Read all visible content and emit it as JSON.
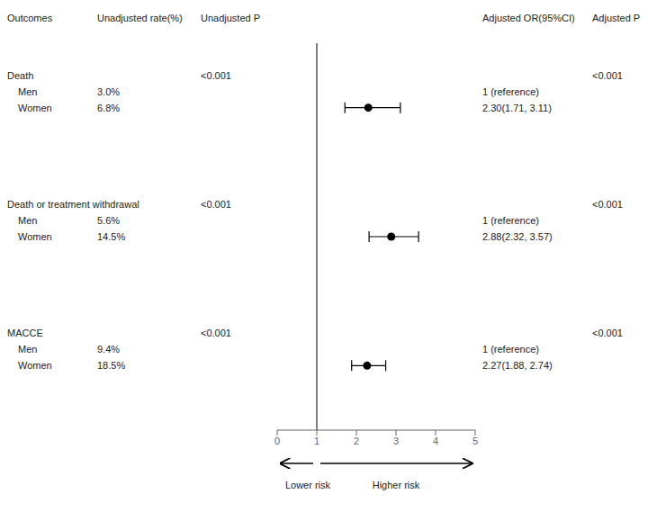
{
  "chart_data": {
    "type": "forest",
    "columns": [
      "Outcomes",
      "Unadjusted rate(%)",
      "Unadjusted P",
      "Adjusted OR(95%CI)",
      "Adjusted P"
    ],
    "categories": [
      "Death",
      "Death or treatment withdrawal",
      "MACCE"
    ],
    "groups": [
      "Men",
      "Women"
    ],
    "rates": [
      [
        "3.0%",
        "6.8%"
      ],
      [
        "5.6%",
        "14.5%"
      ],
      [
        "9.4%",
        "18.5%"
      ]
    ],
    "unadj_p": [
      "<0.001",
      "<0.001",
      "<0.001"
    ],
    "adj_p": [
      "<0.001",
      "<0.001",
      "<0.001"
    ],
    "reference_label": "1 (reference)",
    "ci_labels": [
      "2.30(1.71, 3.11)",
      "2.88(2.32, 3.57)",
      "2.27(1.88, 2.74)"
    ],
    "values": [
      2.3,
      2.88,
      2.27
    ],
    "ci_low": [
      1.71,
      2.32,
      1.88
    ],
    "ci_high": [
      3.11,
      3.57,
      2.74
    ],
    "xlim": [
      0,
      5
    ],
    "xticks": [
      0,
      1,
      2,
      3,
      4,
      5
    ],
    "reference_line": 1,
    "annotations": [
      "Lower risk",
      "Higher risk"
    ],
    "color": "black"
  }
}
